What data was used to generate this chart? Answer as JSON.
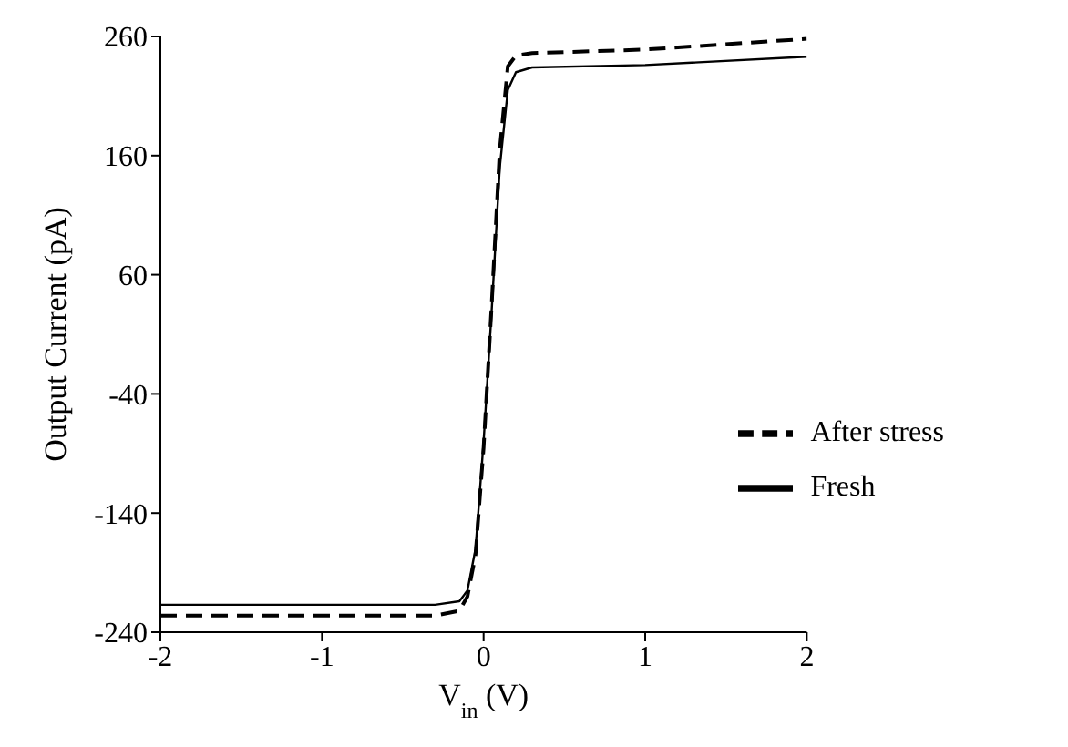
{
  "chart_data": {
    "type": "line",
    "xlabel": "V$_{in}$ (V)",
    "ylabel": "Output Current (pA)",
    "xlim": [
      -2,
      2
    ],
    "xticks": [
      -2,
      -1,
      0,
      1,
      2
    ],
    "ylim": [
      -240,
      260
    ],
    "yticks": [
      -240,
      -140,
      -40,
      60,
      160,
      260
    ],
    "legend": "right",
    "marker": "none",
    "series": [
      {
        "name": "After stress",
        "color": "#000000",
        "line_style": "dashed",
        "x": [
          -2,
          -1,
          -0.3,
          -0.15,
          -0.1,
          -0.05,
          0,
          0.05,
          0.1,
          0.15,
          0.2,
          0.3,
          1,
          2
        ],
        "values": [
          -226,
          -226,
          -226,
          -222,
          -210,
          -175,
          -85,
          35,
          165,
          235,
          244,
          246,
          249,
          258
        ]
      },
      {
        "name": "Fresh",
        "color": "#000000",
        "line_style": "solid",
        "x": [
          -2,
          -1,
          -0.3,
          -0.15,
          -0.1,
          -0.05,
          0,
          0.05,
          0.1,
          0.15,
          0.2,
          0.3,
          1,
          2
        ],
        "values": [
          -217,
          -217,
          -217,
          -214,
          -205,
          -170,
          -80,
          30,
          150,
          215,
          230,
          234,
          236,
          243
        ]
      }
    ]
  }
}
